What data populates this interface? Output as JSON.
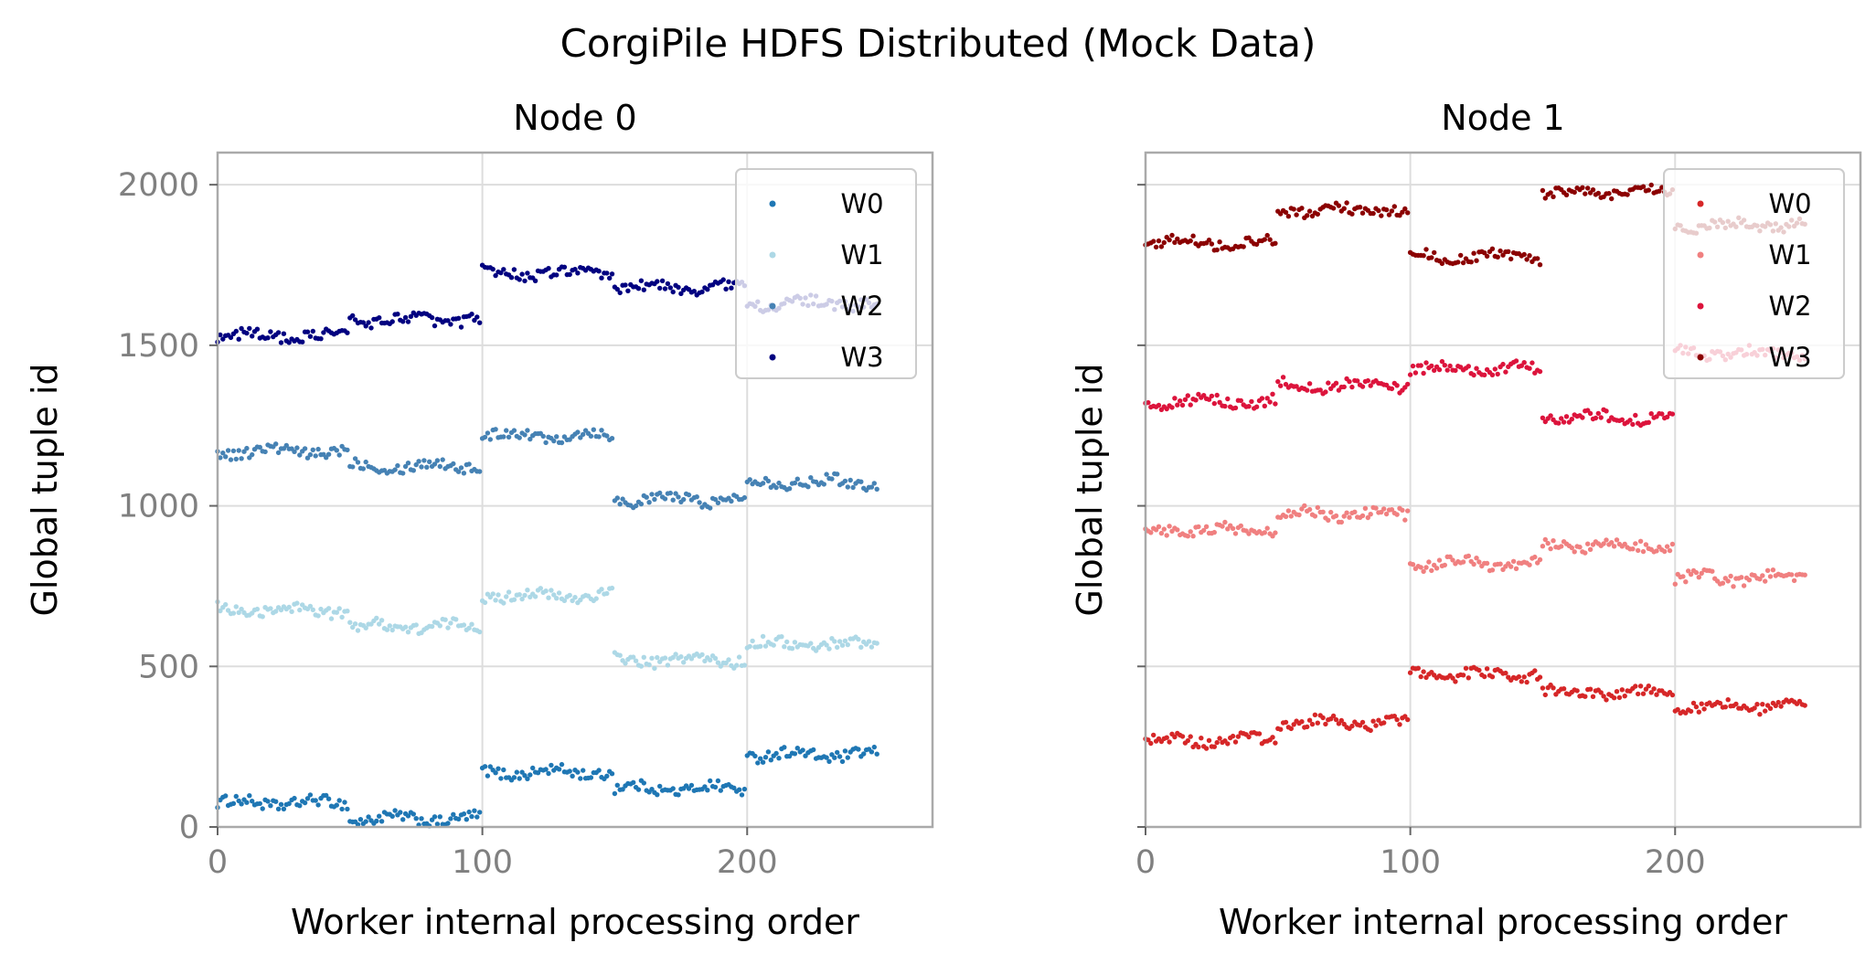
{
  "suptitle": "CorgiPile HDFS Distributed (Mock Data)",
  "chart_data": [
    {
      "type": "scatter",
      "title": "Node 0",
      "xlabel": "Worker internal processing order",
      "ylabel": "Global tuple id",
      "xlim": [
        0,
        270
      ],
      "ylim": [
        0,
        2100
      ],
      "xticks": [
        "0",
        "100",
        "200"
      ],
      "yticks": [
        "0",
        "500",
        "1000",
        "1500",
        "2000"
      ],
      "grid": true,
      "legend_position": "top-right",
      "points_per_series": 250,
      "block_size": 50,
      "series": [
        {
          "name": "W0",
          "color": "#1f77b4",
          "block_levels": [
            75,
            25,
            170,
            120,
            225
          ]
        },
        {
          "name": "W1",
          "color": "#add8e6",
          "block_levels": [
            675,
            625,
            720,
            520,
            570
          ]
        },
        {
          "name": "W2",
          "color": "#4682b4",
          "block_levels": [
            1170,
            1125,
            1220,
            1020,
            1075
          ]
        },
        {
          "name": "W3",
          "color": "#000080",
          "block_levels": [
            1530,
            1580,
            1725,
            1680,
            1630
          ]
        }
      ]
    },
    {
      "type": "scatter",
      "title": "Node 1",
      "xlabel": "Worker internal processing order",
      "ylabel": "Global tuple id",
      "xlim": [
        0,
        270
      ],
      "ylim": [
        0,
        2100
      ],
      "xticks": [
        "0",
        "100",
        "200"
      ],
      "yticks": [
        "0",
        "500",
        "1000",
        "1500",
        "2000"
      ],
      "grid": true,
      "legend_position": "top-right",
      "points_per_series": 250,
      "block_size": 50,
      "series": [
        {
          "name": "W0",
          "color": "#d62728",
          "block_levels": [
            270,
            325,
            475,
            420,
            375
          ]
        },
        {
          "name": "W1",
          "color": "#f08080",
          "block_levels": [
            925,
            975,
            820,
            875,
            775
          ]
        },
        {
          "name": "W2",
          "color": "#dc143c",
          "block_levels": [
            1325,
            1375,
            1425,
            1275,
            1475
          ]
        },
        {
          "name": "W3",
          "color": "#8b0000",
          "block_levels": [
            1820,
            1920,
            1775,
            1975,
            1875
          ]
        }
      ]
    }
  ]
}
